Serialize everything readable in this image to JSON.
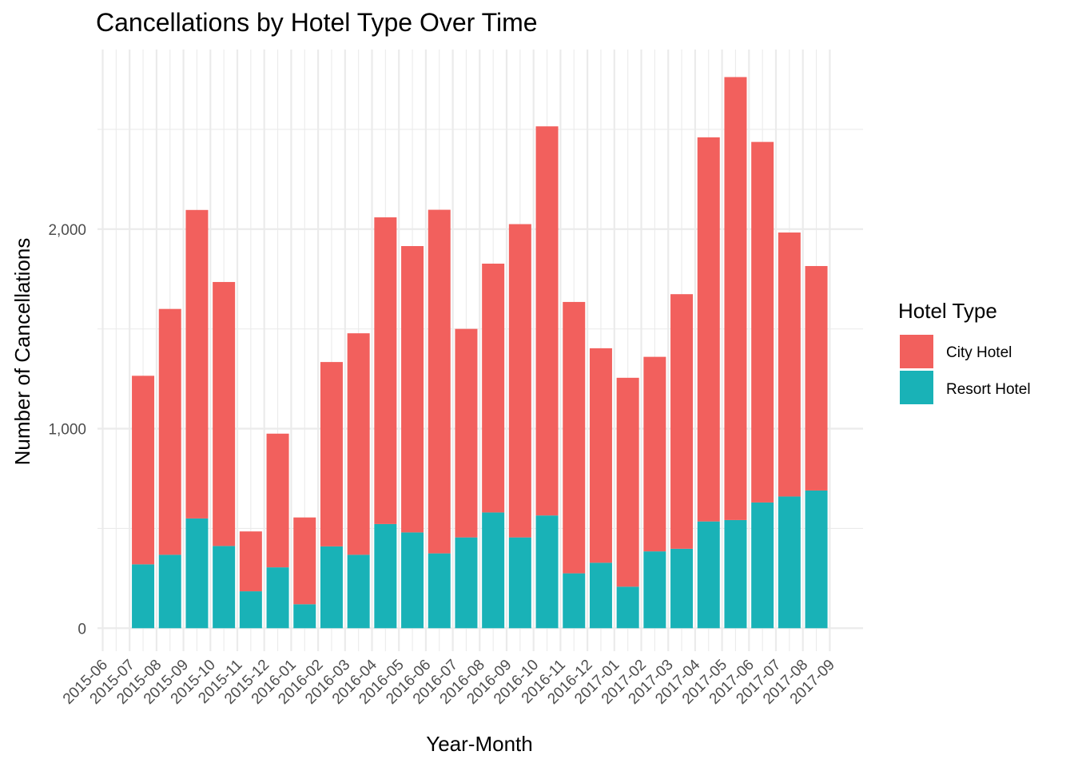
{
  "chart_data": {
    "type": "bar",
    "stacked": true,
    "title": "Cancellations by Hotel Type Over Time",
    "xlabel": "Year-Month",
    "ylabel": "Number of Cancellations",
    "x_ticks": [
      "2015-06",
      "2015-07",
      "2015-08",
      "2015-09",
      "2015-10",
      "2015-11",
      "2015-12",
      "2016-01",
      "2016-02",
      "2016-03",
      "2016-04",
      "2016-05",
      "2016-06",
      "2016-07",
      "2016-08",
      "2016-09",
      "2016-10",
      "2016-11",
      "2016-12",
      "2017-01",
      "2017-02",
      "2017-03",
      "2017-04",
      "2017-05",
      "2017-06",
      "2017-07",
      "2017-08",
      "2017-09"
    ],
    "y_ticks": [
      0,
      1000,
      2000
    ],
    "y_tick_labels": [
      "0",
      "1,000",
      "2,000"
    ],
    "ylim": [
      -115,
      2900
    ],
    "grid": true,
    "legend": {
      "title": "Hotel Type",
      "position": "right"
    },
    "categories": [
      "2015-07",
      "2015-08",
      "2015-09",
      "2015-10",
      "2015-11",
      "2015-12",
      "2016-01",
      "2016-02",
      "2016-03",
      "2016-04",
      "2016-05",
      "2016-06",
      "2016-07",
      "2016-08",
      "2016-09",
      "2016-10",
      "2016-11",
      "2016-12",
      "2017-01",
      "2017-02",
      "2017-03",
      "2017-04",
      "2017-05",
      "2017-06",
      "2017-07",
      "2017-08"
    ],
    "series": [
      {
        "name": "Resort Hotel",
        "color": "#19b2b7",
        "values": [
          320,
          368,
          550,
          412,
          185,
          305,
          120,
          410,
          368,
          522,
          480,
          375,
          455,
          580,
          455,
          565,
          275,
          328,
          208,
          385,
          398,
          535,
          542,
          630,
          660,
          690
        ]
      },
      {
        "name": "City Hotel",
        "color": "#f2605d",
        "values": [
          945,
          1232,
          1546,
          1323,
          300,
          670,
          435,
          924,
          1110,
          1537,
          1435,
          1722,
          1045,
          1247,
          1570,
          1950,
          1360,
          1075,
          1047,
          975,
          1276,
          1925,
          2220,
          1807,
          1323,
          1125
        ]
      }
    ]
  }
}
